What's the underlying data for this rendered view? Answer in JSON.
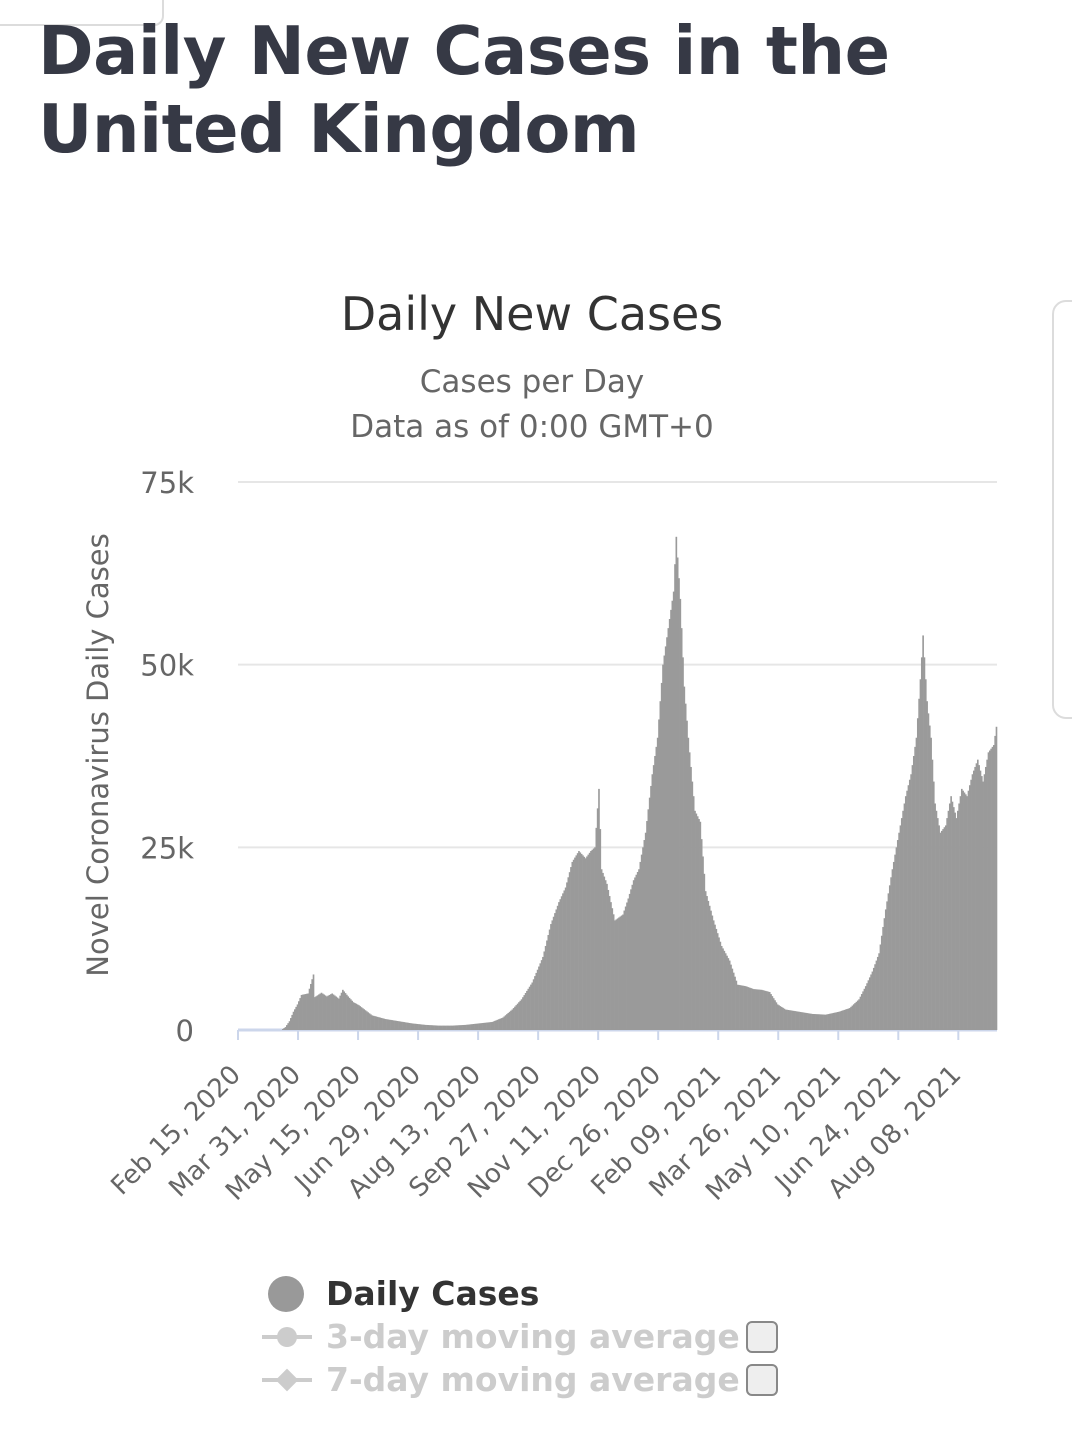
{
  "page_title": "Daily New Cases in the United Kingdom",
  "colors": {
    "bar": "#9a9a9a",
    "grid": "#e6e6e6",
    "axis": "#ccd6eb",
    "title": "#363945"
  },
  "chart_data": {
    "type": "bar",
    "title": "Daily New Cases",
    "subtitle_lines": [
      "Cases per Day",
      "Data as of 0:00 GMT+0"
    ],
    "ylabel": "Novel Coronavirus Daily Cases",
    "xlabel": "",
    "ylim": [
      0,
      75000
    ],
    "y_ticks": [
      0,
      25000,
      50000,
      75000
    ],
    "y_tick_labels": [
      "0",
      "25k",
      "50k",
      "75k"
    ],
    "x_ticks": [
      {
        "day": 0,
        "label": "Feb 15, 2020"
      },
      {
        "day": 45,
        "label": "Mar 31, 2020"
      },
      {
        "day": 90,
        "label": "May 15, 2020"
      },
      {
        "day": 135,
        "label": "Jun 29, 2020"
      },
      {
        "day": 180,
        "label": "Aug 13, 2020"
      },
      {
        "day": 225,
        "label": "Sep 27, 2020"
      },
      {
        "day": 270,
        "label": "Nov 11, 2020"
      },
      {
        "day": 315,
        "label": "Dec 26, 2020"
      },
      {
        "day": 360,
        "label": "Feb 09, 2021"
      },
      {
        "day": 405,
        "label": "Mar 26, 2021"
      },
      {
        "day": 450,
        "label": "May 10, 2021"
      },
      {
        "day": 495,
        "label": "Jun 24, 2021"
      },
      {
        "day": 540,
        "label": "Aug 08, 2021"
      }
    ],
    "x_range_days": [
      0,
      568
    ],
    "series": [
      {
        "name": "Daily Cases",
        "start_date": "Feb 15, 2020",
        "interval": "day",
        "keyframes": [
          [
            0,
            0
          ],
          [
            32,
            0
          ],
          [
            35,
            400
          ],
          [
            38,
            1200
          ],
          [
            41,
            2500
          ],
          [
            44,
            3500
          ],
          [
            47,
            4800
          ],
          [
            52,
            5000
          ],
          [
            56,
            7600
          ],
          [
            57,
            4500
          ],
          [
            62,
            5100
          ],
          [
            66,
            4600
          ],
          [
            70,
            5000
          ],
          [
            75,
            4300
          ],
          [
            78,
            5500
          ],
          [
            82,
            4600
          ],
          [
            86,
            3800
          ],
          [
            90,
            3400
          ],
          [
            95,
            2700
          ],
          [
            100,
            2000
          ],
          [
            110,
            1500
          ],
          [
            120,
            1200
          ],
          [
            130,
            900
          ],
          [
            140,
            700
          ],
          [
            150,
            600
          ],
          [
            160,
            600
          ],
          [
            170,
            700
          ],
          [
            180,
            900
          ],
          [
            190,
            1100
          ],
          [
            198,
            1700
          ],
          [
            205,
            2800
          ],
          [
            212,
            4200
          ],
          [
            220,
            6500
          ],
          [
            228,
            10000
          ],
          [
            234,
            14500
          ],
          [
            240,
            17500
          ],
          [
            245,
            19500
          ],
          [
            250,
            23000
          ],
          [
            255,
            24500
          ],
          [
            260,
            23500
          ],
          [
            264,
            24500
          ],
          [
            267,
            25000
          ],
          [
            270,
            33000
          ],
          [
            272,
            22000
          ],
          [
            276,
            20000
          ],
          [
            282,
            15000
          ],
          [
            288,
            15800
          ],
          [
            292,
            18000
          ],
          [
            296,
            20500
          ],
          [
            300,
            22000
          ],
          [
            305,
            27000
          ],
          [
            310,
            35000
          ],
          [
            314,
            40000
          ],
          [
            318,
            50000
          ],
          [
            322,
            55000
          ],
          [
            326,
            60000
          ],
          [
            328,
            67500
          ],
          [
            331,
            59000
          ],
          [
            334,
            47000
          ],
          [
            337,
            40000
          ],
          [
            342,
            30000
          ],
          [
            346,
            28500
          ],
          [
            350,
            19000
          ],
          [
            356,
            15000
          ],
          [
            362,
            11500
          ],
          [
            368,
            9500
          ],
          [
            374,
            6200
          ],
          [
            380,
            6000
          ],
          [
            386,
            5600
          ],
          [
            392,
            5500
          ],
          [
            398,
            5200
          ],
          [
            404,
            3500
          ],
          [
            410,
            2800
          ],
          [
            420,
            2500
          ],
          [
            430,
            2200
          ],
          [
            440,
            2100
          ],
          [
            450,
            2500
          ],
          [
            458,
            3000
          ],
          [
            465,
            4200
          ],
          [
            470,
            6000
          ],
          [
            475,
            8000
          ],
          [
            480,
            10500
          ],
          [
            485,
            16500
          ],
          [
            490,
            22000
          ],
          [
            495,
            27000
          ],
          [
            500,
            32000
          ],
          [
            504,
            35000
          ],
          [
            508,
            40000
          ],
          [
            511,
            48000
          ],
          [
            513,
            54000
          ],
          [
            516,
            45000
          ],
          [
            519,
            40000
          ],
          [
            522,
            31000
          ],
          [
            526,
            27000
          ],
          [
            530,
            28000
          ],
          [
            534,
            32000
          ],
          [
            538,
            29000
          ],
          [
            542,
            33000
          ],
          [
            546,
            32000
          ],
          [
            550,
            35000
          ],
          [
            554,
            37000
          ],
          [
            558,
            34000
          ],
          [
            562,
            38000
          ],
          [
            566,
            39000
          ],
          [
            568,
            41500
          ]
        ]
      }
    ]
  },
  "legend": {
    "items": [
      {
        "label": "Daily Cases",
        "active": true
      },
      {
        "label": "3-day moving average",
        "active": false
      },
      {
        "label": "7-day moving average",
        "active": false
      }
    ]
  }
}
